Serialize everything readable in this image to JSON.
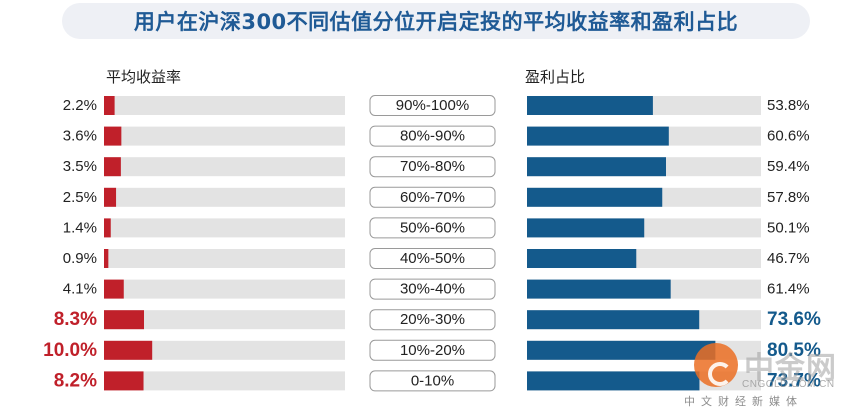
{
  "chart_data": {
    "type": "bar",
    "title": "用户在沪深300不同估值分位开启定投的平均收益率和盈利占比",
    "categories": [
      "90%-100%",
      "80%-90%",
      "70%-80%",
      "60%-70%",
      "50%-60%",
      "40%-50%",
      "30%-40%",
      "20%-30%",
      "10%-20%",
      "0-10%"
    ],
    "series": [
      {
        "name": "平均收益率",
        "values": [
          2.2,
          3.6,
          3.5,
          2.5,
          1.4,
          0.9,
          4.1,
          8.3,
          10.0,
          8.2
        ],
        "labels": [
          "2.2%",
          "3.6%",
          "3.5%",
          "2.5%",
          "1.4%",
          "0.9%",
          "4.1%",
          "8.3%",
          "10.0%",
          "8.2%"
        ],
        "highlighted": [
          false,
          false,
          false,
          false,
          false,
          false,
          false,
          true,
          true,
          true
        ],
        "color": "#c0202a",
        "xlim": [
          0,
          50
        ]
      },
      {
        "name": "盈利占比",
        "values": [
          53.8,
          60.6,
          59.4,
          57.8,
          50.1,
          46.7,
          61.4,
          73.6,
          80.5,
          73.7
        ],
        "labels": [
          "53.8%",
          "60.6%",
          "59.4%",
          "57.8%",
          "50.1%",
          "46.7%",
          "61.4%",
          "73.6%",
          "80.5%",
          "73.7%"
        ],
        "highlighted": [
          false,
          false,
          false,
          false,
          false,
          false,
          false,
          true,
          true,
          true
        ],
        "color": "#145a8c",
        "xlim": [
          0,
          100
        ]
      }
    ],
    "track_color": "#e3e3e3",
    "highlight_colors": {
      "left": "#c0202a",
      "right": "#145a8c"
    }
  },
  "watermark": {
    "name": "中金网",
    "domain": "CNGOLD.COM.CN",
    "tagline": "中文财经新媒体"
  }
}
